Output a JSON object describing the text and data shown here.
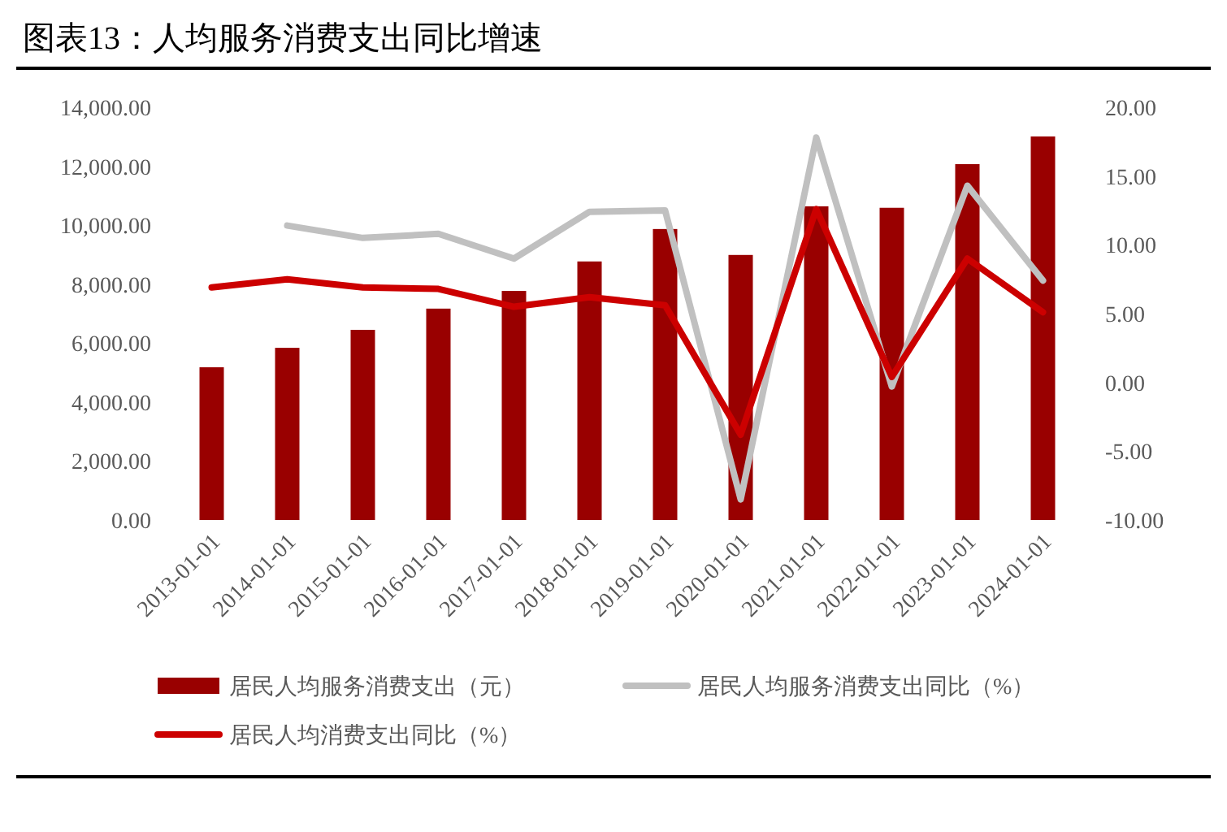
{
  "chart_data": {
    "type": "bar",
    "title": "图表13：人均服务消费支出同比增速",
    "categories": [
      "2013-01-01",
      "2014-01-01",
      "2015-01-01",
      "2016-01-01",
      "2017-01-01",
      "2018-01-01",
      "2019-01-01",
      "2020-01-01",
      "2021-01-01",
      "2022-01-01",
      "2023-01-01",
      "2024-01-01"
    ],
    "series": [
      {
        "name": "居民人均服务消费支出（元）",
        "color": "#990000",
        "values": [
          5180,
          5840,
          6450,
          7170,
          7770,
          8770,
          9870,
          8990,
          10640,
          10590,
          12070,
          13010
        ]
      },
      {
        "name": "居民人均服务消费支出同比（%）",
        "type": "line",
        "axis": "y2",
        "color": "#c0c0c0",
        "values": [
          null,
          11.4,
          10.5,
          10.8,
          9.0,
          12.4,
          12.5,
          -8.5,
          17.8,
          -0.3,
          14.3,
          7.4
        ]
      },
      {
        "name": "居民人均消费支出同比（%）",
        "type": "line",
        "axis": "y2",
        "color": "#cc0000",
        "values": [
          6.9,
          7.5,
          6.9,
          6.8,
          5.5,
          6.2,
          5.6,
          -3.8,
          12.6,
          0.4,
          9.0,
          5.1
        ]
      }
    ],
    "ylim": [
      0,
      14000
    ],
    "yticks": [
      {
        "value": 0,
        "label": "0.00"
      },
      {
        "value": 2000,
        "label": "2,000.00"
      },
      {
        "value": 4000,
        "label": "4,000.00"
      },
      {
        "value": 6000,
        "label": "6,000.00"
      },
      {
        "value": 8000,
        "label": "8,000.00"
      },
      {
        "value": 10000,
        "label": "10,000.00"
      },
      {
        "value": 12000,
        "label": "12,000.00"
      },
      {
        "value": 14000,
        "label": "14,000.00"
      }
    ],
    "y2lim": [
      -10,
      20
    ],
    "y2ticks": [
      {
        "value": -10,
        "label": "-10.00"
      },
      {
        "value": -5,
        "label": "-5.00"
      },
      {
        "value": 0,
        "label": "0.00"
      },
      {
        "value": 5,
        "label": "5.00"
      },
      {
        "value": 10,
        "label": "10.00"
      },
      {
        "value": 15,
        "label": "15.00"
      },
      {
        "value": 20,
        "label": "20.00"
      }
    ],
    "legend": "bottom",
    "grid": false
  }
}
